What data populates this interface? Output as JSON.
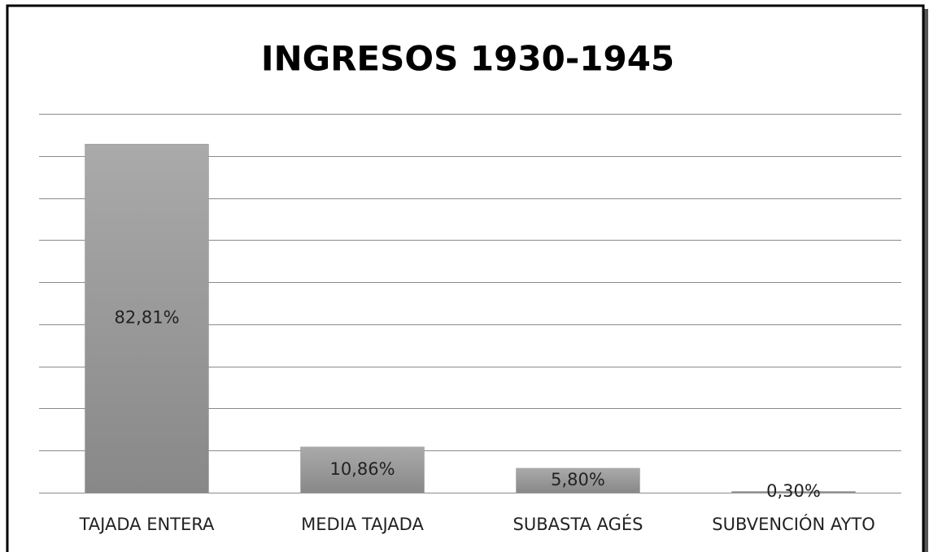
{
  "chart_data": {
    "type": "bar",
    "title": "INGRESOS 1930-1945",
    "categories": [
      "TAJADA ENTERA",
      "MEDIA TAJADA",
      "SUBASTA AGÉS",
      "SUBVENCIÓN AYTO"
    ],
    "values": [
      82.81,
      10.86,
      5.8,
      0.3
    ],
    "value_labels": [
      "82,81%",
      "10,86%",
      "5,80%",
      "0,30%"
    ],
    "color": "#9a9a9a",
    "ylim": [
      0,
      90
    ],
    "yticks": [
      0,
      10,
      20,
      30,
      40,
      50,
      60,
      70,
      80,
      90
    ],
    "grid": true
  }
}
